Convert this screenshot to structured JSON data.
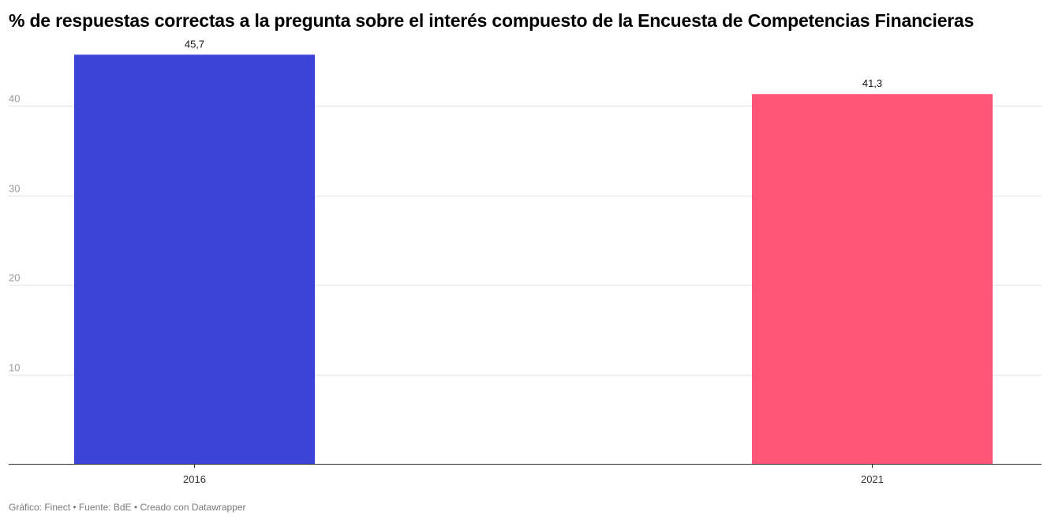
{
  "chart_data": {
    "type": "bar",
    "title": "% de respuestas correctas a la pregunta sobre el interés compuesto de la Encuesta de Competencias Financieras",
    "categories": [
      "2016",
      "2021"
    ],
    "values": [
      45.7,
      41.3
    ],
    "value_labels": [
      "45,7",
      "41,3"
    ],
    "colors": [
      "#3b44d6",
      "#ff5577"
    ],
    "y_ticks": [
      10,
      20,
      30,
      40
    ],
    "ylim": [
      0,
      46
    ],
    "grid": true,
    "xlabel": "",
    "ylabel": ""
  },
  "footer": {
    "text": "Gráfico: Finect • Fuente: BdE • Creado con Datawrapper"
  }
}
